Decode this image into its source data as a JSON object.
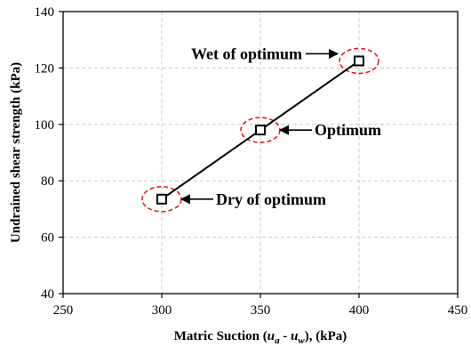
{
  "chart_data": {
    "type": "line",
    "xlabel_parts": {
      "prefix": "Matric Suction (",
      "u1": "u",
      "sub1": "a",
      "middle": " - ",
      "u2": "u",
      "sub2": "w",
      "suffix": "), (kPa)"
    },
    "ylabel": "Undrained shear strength (kPa)",
    "xlim": [
      250,
      450
    ],
    "ylim": [
      40,
      140
    ],
    "xticks": [
      250,
      300,
      350,
      400,
      450
    ],
    "yticks": [
      40,
      60,
      80,
      100,
      120,
      140
    ],
    "grid": true,
    "series": [
      {
        "x": [
          300,
          350,
          400
        ],
        "y": [
          73.5,
          98,
          122.5
        ],
        "color": "#000000",
        "marker": "hollow-square"
      }
    ],
    "annotations": [
      {
        "text": "Dry of optimum",
        "x": 300,
        "y": 73.5,
        "side": "right"
      },
      {
        "text": "Optimum",
        "x": 350,
        "y": 98,
        "side": "right"
      },
      {
        "text": "Wet of optimum",
        "x": 400,
        "y": 122.5,
        "side": "left"
      }
    ],
    "highlight_color": "#e0201c"
  }
}
